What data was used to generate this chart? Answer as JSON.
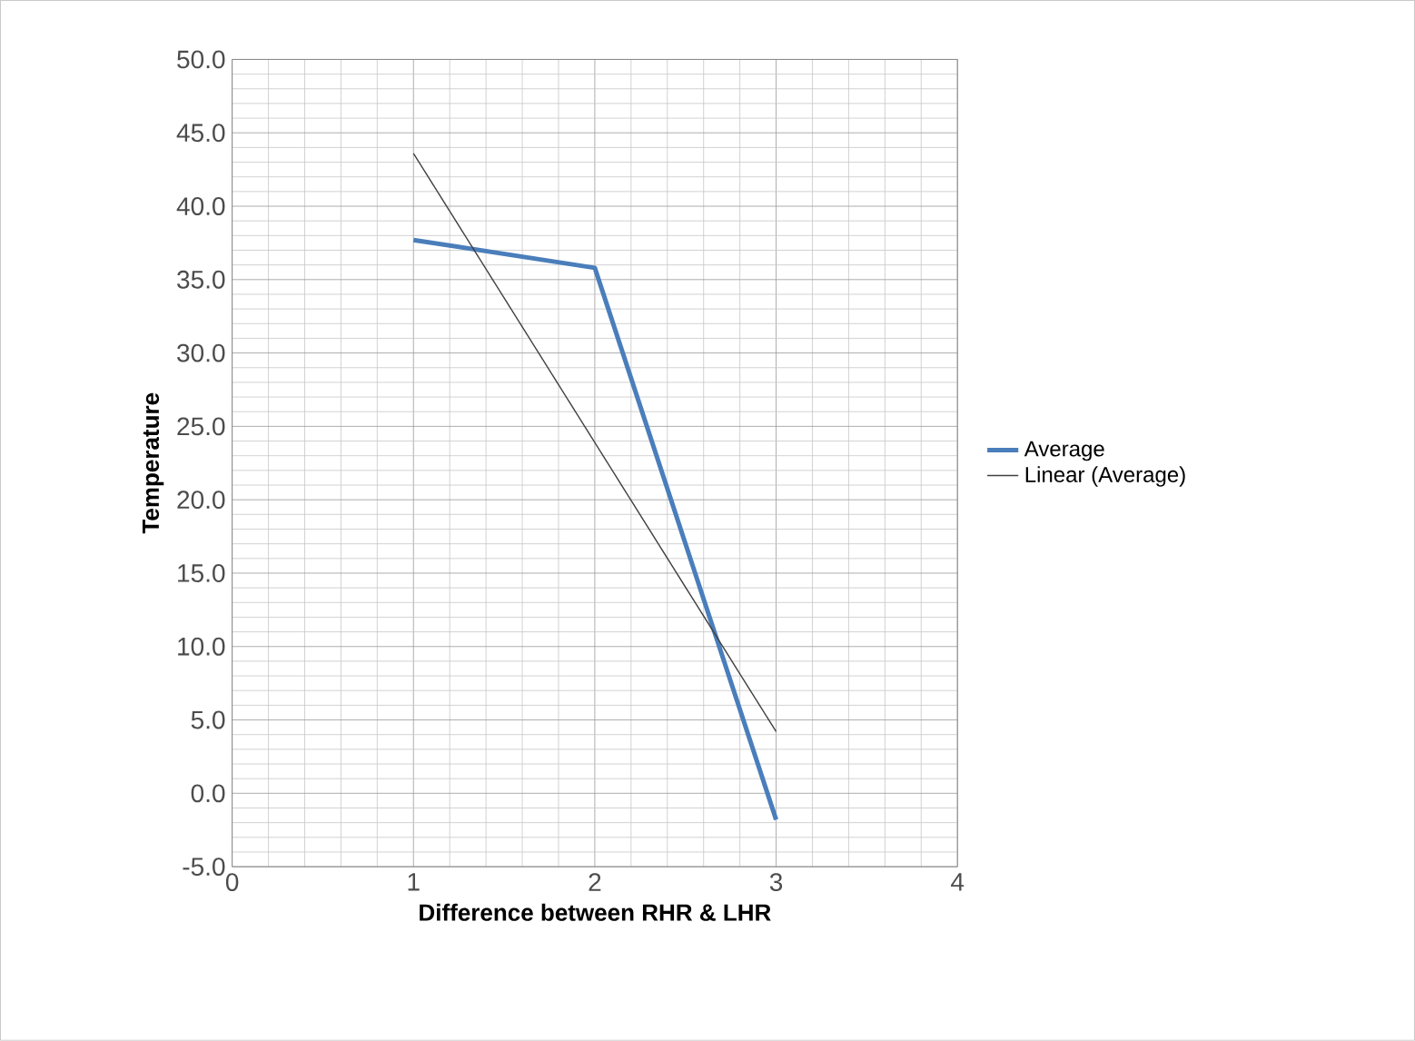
{
  "chart_data": {
    "type": "line",
    "xlabel": "Difference between RHR & LHR",
    "ylabel": "Temperature",
    "xlim": [
      0,
      4
    ],
    "xticks": [
      0,
      1,
      2,
      3,
      4
    ],
    "ylim": [
      -5,
      50
    ],
    "yticks": [
      {
        "value": -5,
        "label": "-5.0"
      },
      {
        "value": 0,
        "label": "0.0"
      },
      {
        "value": 5,
        "label": "5.0"
      },
      {
        "value": 10,
        "label": "10.0"
      },
      {
        "value": 15,
        "label": "15.0"
      },
      {
        "value": 20,
        "label": "20.0"
      },
      {
        "value": 25,
        "label": "25.0"
      },
      {
        "value": 30,
        "label": "30.0"
      },
      {
        "value": 35,
        "label": "35.0"
      },
      {
        "value": 40,
        "label": "40.0"
      },
      {
        "value": 45,
        "label": "45.0"
      },
      {
        "value": 50,
        "label": "50.0"
      }
    ],
    "grid": true,
    "legend": "right",
    "marker": "none",
    "line_style": "solid",
    "series": [
      {
        "name": "Average",
        "color": "#4a7ebb",
        "x": [
          1,
          2,
          3
        ],
        "values": [
          37.7,
          35.8,
          -1.8
        ]
      },
      {
        "name": "Linear (Average)",
        "color": "#404040",
        "x": [
          1,
          3
        ],
        "values": [
          43.6,
          4.2
        ]
      }
    ]
  }
}
